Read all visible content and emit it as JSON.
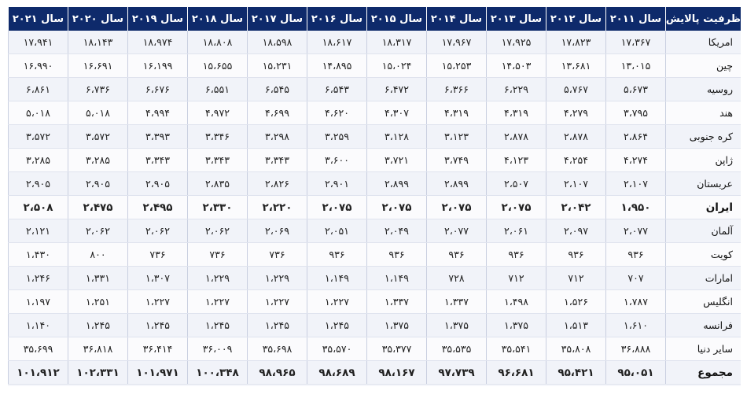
{
  "table": {
    "headers": [
      "ظرفیت پالایش",
      "سال ۲۰۱۱",
      "سال ۲۰۱۲",
      "سال ۲۰۱۳",
      "سال ۲۰۱۴",
      "سال ۲۰۱۵",
      "سال ۲۰۱۶",
      "سال ۲۰۱۷",
      "سال ۲۰۱۸",
      "سال ۲۰۱۹",
      "سال ۲۰۲۰",
      "سال ۲۰۲۱"
    ],
    "rows": [
      {
        "bold": false,
        "cells": [
          "امریکا",
          "۱۷،۳۶۷",
          "۱۷،۸۲۳",
          "۱۷،۹۲۵",
          "۱۷،۹۶۷",
          "۱۸،۳۱۷",
          "۱۸،۶۱۷",
          "۱۸،۵۹۸",
          "۱۸،۸۰۸",
          "۱۸،۹۷۴",
          "۱۸،۱۴۳",
          "۱۷،۹۴۱"
        ]
      },
      {
        "bold": false,
        "cells": [
          "چین",
          "۱۳،۰۱۵",
          "۱۳،۶۸۱",
          "۱۴،۵۰۳",
          "۱۵،۲۵۳",
          "۱۵،۰۲۴",
          "۱۴،۸۹۵",
          "۱۵،۲۳۱",
          "۱۵،۶۵۵",
          "۱۶،۱۹۹",
          "۱۶،۶۹۱",
          "۱۶،۹۹۰"
        ]
      },
      {
        "bold": false,
        "cells": [
          "روسیه",
          "۵،۶۷۳",
          "۵،۷۶۷",
          "۶،۲۲۹",
          "۶،۳۶۶",
          "۶،۴۷۲",
          "۶،۵۴۳",
          "۶،۵۴۵",
          "۶،۵۵۱",
          "۶،۶۷۶",
          "۶،۷۳۶",
          "۶،۸۶۱"
        ]
      },
      {
        "bold": false,
        "cells": [
          "هند",
          "۳،۷۹۵",
          "۴،۲۷۹",
          "۴،۳۱۹",
          "۴،۳۱۹",
          "۴،۳۰۷",
          "۴،۶۲۰",
          "۴،۶۹۹",
          "۴،۹۷۲",
          "۴،۹۹۴",
          "۵،۰۱۸",
          "۵،۰۱۸"
        ]
      },
      {
        "bold": false,
        "cells": [
          "کره جنوبی",
          "۲،۸۶۴",
          "۲،۸۷۸",
          "۲،۸۷۸",
          "۳،۱۲۳",
          "۳،۱۲۸",
          "۳،۲۵۹",
          "۳،۲۹۸",
          "۳،۳۴۶",
          "۳،۳۹۳",
          "۳،۵۷۲",
          "۳،۵۷۲"
        ]
      },
      {
        "bold": false,
        "cells": [
          "ژاپن",
          "۴،۲۷۴",
          "۴،۲۵۴",
          "۴،۱۲۳",
          "۳،۷۴۹",
          "۳،۷۲۱",
          "۳،۶۰۰",
          "۳،۳۴۳",
          "۳،۳۴۳",
          "۳،۳۴۳",
          "۳،۲۸۵",
          "۳،۲۸۵"
        ]
      },
      {
        "bold": false,
        "cells": [
          "عربستان",
          "۲،۱۰۷",
          "۲،۱۰۷",
          "۲،۵۰۷",
          "۲،۸۹۹",
          "۲،۸۹۹",
          "۲،۹۰۱",
          "۲،۸۲۶",
          "۲،۸۳۵",
          "۲،۹۰۵",
          "۲،۹۰۵",
          "۲،۹۰۵"
        ]
      },
      {
        "bold": true,
        "cells": [
          "ایران",
          "۱،۹۵۰",
          "۲،۰۴۲",
          "۲،۰۷۵",
          "۲،۰۷۵",
          "۲،۰۷۵",
          "۲،۰۷۵",
          "۲،۲۲۰",
          "۲،۳۳۰",
          "۲،۴۹۵",
          "۲،۴۷۵",
          "۲،۵۰۸"
        ]
      },
      {
        "bold": false,
        "cells": [
          "آلمان",
          "۲،۰۷۷",
          "۲،۰۹۷",
          "۲،۰۶۱",
          "۲،۰۷۷",
          "۲،۰۴۹",
          "۲،۰۵۱",
          "۲،۰۶۹",
          "۲،۰۶۲",
          "۲،۰۶۲",
          "۲،۰۶۲",
          "۲،۱۲۱"
        ]
      },
      {
        "bold": false,
        "cells": [
          "کویت",
          "۹۳۶",
          "۹۳۶",
          "۹۳۶",
          "۹۳۶",
          "۹۳۶",
          "۹۳۶",
          "۷۳۶",
          "۷۳۶",
          "۷۳۶",
          "۸۰۰",
          "۱،۴۳۰"
        ]
      },
      {
        "bold": false,
        "cells": [
          "امارات",
          "۷۰۷",
          "۷۱۲",
          "۷۱۲",
          "۷۲۸",
          "۱،۱۴۹",
          "۱،۱۴۹",
          "۱،۲۲۹",
          "۱،۲۲۹",
          "۱،۳۰۷",
          "۱،۳۳۱",
          "۱،۲۴۶"
        ]
      },
      {
        "bold": false,
        "cells": [
          "انگلیس",
          "۱،۷۸۷",
          "۱،۵۲۶",
          "۱،۴۹۸",
          "۱،۳۳۷",
          "۱،۳۳۷",
          "۱،۲۲۷",
          "۱،۲۲۷",
          "۱،۲۲۷",
          "۱،۲۲۷",
          "۱،۲۵۱",
          "۱،۱۹۷"
        ]
      },
      {
        "bold": false,
        "cells": [
          "فرانسه",
          "۱،۶۱۰",
          "۱،۵۱۳",
          "۱،۳۷۵",
          "۱،۳۷۵",
          "۱،۳۷۵",
          "۱،۲۴۵",
          "۱،۲۴۵",
          "۱،۲۴۵",
          "۱،۲۴۵",
          "۱،۲۴۵",
          "۱،۱۴۰"
        ]
      },
      {
        "bold": false,
        "cells": [
          "سایر دنیا",
          "۳۶،۸۸۸",
          "۳۵،۸۰۸",
          "۳۵،۵۴۱",
          "۳۵،۵۳۵",
          "۳۵،۳۷۷",
          "۳۵،۵۷۰",
          "۳۵،۶۹۸",
          "۳۶،۰۰۹",
          "۳۶،۴۱۴",
          "۳۶،۸۱۸",
          "۳۵،۶۹۹"
        ]
      },
      {
        "bold": true,
        "cells": [
          "مجموع",
          "۹۵،۰۵۱",
          "۹۵،۴۲۱",
          "۹۶،۶۸۱",
          "۹۷،۷۳۹",
          "۹۸،۱۶۷",
          "۹۸،۶۸۹",
          "۹۸،۹۶۵",
          "۱۰۰،۳۴۸",
          "۱۰۱،۹۷۱",
          "۱۰۲،۳۳۱",
          "۱۰۱،۹۱۲"
        ]
      }
    ]
  }
}
